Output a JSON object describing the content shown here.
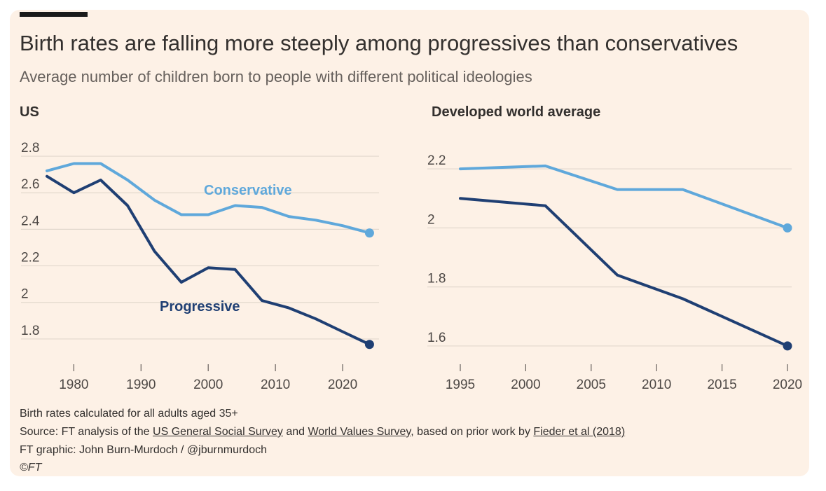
{
  "header": {
    "title": "Birth rates are falling more steeply among progressives than conservatives",
    "subtitle": "Average number of children born to people with different political ideologies"
  },
  "colors": {
    "conservative": "#5fa8db",
    "progressive": "#1f3f73",
    "grid": "#e2d8cd",
    "text": "#33302e"
  },
  "chart_data": [
    {
      "type": "line",
      "title": "US",
      "xlabel": "",
      "ylabel": "",
      "xlim": [
        1976,
        2025
      ],
      "ylim": [
        1.7,
        2.85
      ],
      "xticks": [
        1980,
        1990,
        2000,
        2010,
        2020
      ],
      "yticks": [
        1.8,
        2,
        2.2,
        2.4,
        2.6,
        2.8
      ],
      "ytick_labels": [
        "1.8",
        "2",
        "2.2",
        "2.4",
        "2.6",
        "2.8"
      ],
      "series": [
        {
          "name": "Conservative",
          "x": [
            1976,
            1980,
            1984,
            1988,
            1992,
            1996,
            2000,
            2004,
            2008,
            2012,
            2016,
            2020,
            2024
          ],
          "values": [
            2.72,
            2.76,
            2.76,
            2.67,
            2.56,
            2.48,
            2.48,
            2.53,
            2.52,
            2.47,
            2.45,
            2.42,
            2.38
          ]
        },
        {
          "name": "Progressive",
          "x": [
            1976,
            1980,
            1984,
            1988,
            1992,
            1996,
            2000,
            2004,
            2008,
            2012,
            2016,
            2020,
            2024
          ],
          "values": [
            2.69,
            2.6,
            2.67,
            2.53,
            2.28,
            2.11,
            2.19,
            2.18,
            2.01,
            1.97,
            1.91,
            1.84,
            1.77
          ]
        }
      ]
    },
    {
      "type": "line",
      "title": "Developed world average",
      "xlabel": "",
      "ylabel": "",
      "xlim": [
        1995,
        2020
      ],
      "ylim": [
        1.55,
        2.25
      ],
      "xticks": [
        1995,
        2000,
        2005,
        2010,
        2015,
        2020
      ],
      "yticks": [
        1.6,
        1.8,
        2,
        2.2
      ],
      "ytick_labels": [
        "1.6",
        "1.8",
        "2",
        "2.2"
      ],
      "series": [
        {
          "name": "Conservative",
          "x": [
            1995,
            2001.5,
            2007,
            2012,
            2020
          ],
          "values": [
            2.2,
            2.21,
            2.13,
            2.13,
            2.0
          ]
        },
        {
          "name": "Progressive",
          "x": [
            1995,
            2001.5,
            2007,
            2012,
            2020
          ],
          "values": [
            2.1,
            2.075,
            1.84,
            1.76,
            1.6
          ]
        }
      ]
    }
  ],
  "footer": {
    "note": "Birth rates calculated for all adults aged 35+",
    "source_prefix": "Source: FT analysis of the ",
    "source_link1": "US General Social Survey",
    "source_and": " and ",
    "source_link2": "World Values Survey",
    "source_mid": ", based on prior work by ",
    "source_link3": "Fieder et al (2018)",
    "credit": "FT graphic: John Burn-Murdoch / @jburnmurdoch",
    "copyright": "©FT"
  }
}
